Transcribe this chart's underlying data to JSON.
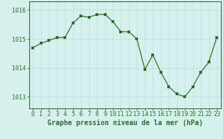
{
  "x": [
    0,
    1,
    2,
    3,
    4,
    5,
    6,
    7,
    8,
    9,
    10,
    11,
    12,
    13,
    14,
    15,
    16,
    17,
    18,
    19,
    20,
    21,
    22,
    23
  ],
  "y": [
    1014.7,
    1014.85,
    1014.95,
    1015.05,
    1015.05,
    1015.55,
    1015.8,
    1015.75,
    1015.85,
    1015.85,
    1015.6,
    1015.25,
    1015.25,
    1015.0,
    1013.95,
    1014.45,
    1013.85,
    1013.35,
    1013.1,
    1013.0,
    1013.35,
    1013.85,
    1014.2,
    1015.05
  ],
  "xlabel": "Graphe pression niveau de la mer (hPa)",
  "xlim": [
    -0.5,
    23.5
  ],
  "ylim": [
    1012.6,
    1016.3
  ],
  "ytick_labels": [
    "1013",
    "1014",
    "1015",
    "1016"
  ],
  "ytick_vals": [
    1013,
    1014,
    1015,
    1016
  ],
  "xticks": [
    0,
    1,
    2,
    3,
    4,
    5,
    6,
    7,
    8,
    9,
    10,
    11,
    12,
    13,
    14,
    15,
    16,
    17,
    18,
    19,
    20,
    21,
    22,
    23
  ],
  "line_color": "#2d6e2d",
  "marker_color": "#2d6e2d",
  "bg_color": "#d6f0ee",
  "grid_color": "#b8ddd8",
  "border_color": "#2d6e2d",
  "xlabel_fontsize": 7,
  "tick_fontsize": 6
}
